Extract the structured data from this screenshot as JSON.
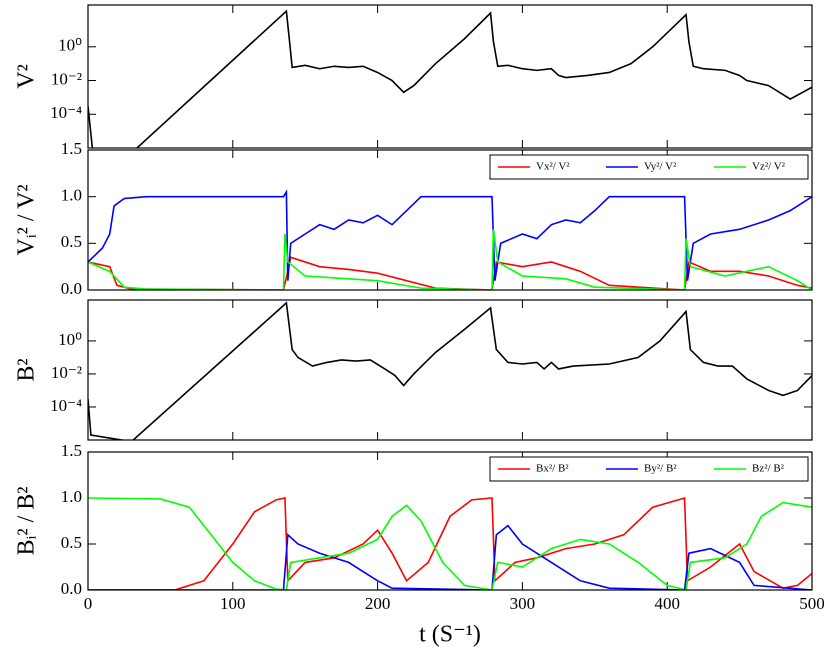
{
  "chart_data": [
    {
      "type": "line",
      "y_label": "V²",
      "yscale": "log",
      "xlim": [
        0,
        500
      ],
      "ylim": [
        1e-06,
        300
      ],
      "yticks": [
        {
          "value": 0.0001,
          "label": "10⁻⁴"
        },
        {
          "value": 0.01,
          "label": "10⁻²"
        },
        {
          "value": 1,
          "label": "10⁰"
        }
      ],
      "color": "#000000",
      "x": [
        0,
        3,
        30,
        137,
        139,
        141,
        150,
        160,
        170,
        180,
        190,
        200,
        210,
        218,
        225,
        240,
        260,
        278,
        280,
        283,
        290,
        300,
        310,
        320,
        325,
        330,
        345,
        360,
        375,
        390,
        413,
        415,
        418,
        425,
        440,
        450,
        455,
        470,
        485,
        500
      ],
      "values": [
        0.0003,
        1e-06,
        5e-07,
        130,
        3,
        0.06,
        0.08,
        0.05,
        0.07,
        0.06,
        0.07,
        0.03,
        0.01,
        0.002,
        0.005,
        0.1,
        3,
        100,
        2,
        0.07,
        0.08,
        0.05,
        0.04,
        0.05,
        0.02,
        0.015,
        0.02,
        0.03,
        0.1,
        1,
        80,
        2,
        0.07,
        0.05,
        0.04,
        0.02,
        0.01,
        0.005,
        0.0008,
        0.004
      ]
    },
    {
      "type": "line",
      "y_label": "Vᵢ² / V²",
      "xlim": [
        0,
        500
      ],
      "ylim": [
        0,
        1.5
      ],
      "yticks": [
        {
          "value": 0,
          "label": "0.0"
        },
        {
          "value": 0.5,
          "label": "0.5"
        },
        {
          "value": 1,
          "label": "1.0"
        },
        1.5
      ],
      "legend": "top right",
      "series": [
        {
          "name": "Vx²/ V²",
          "color": "#ff0000",
          "x": [
            0,
            15,
            20,
            30,
            135,
            138,
            140,
            160,
            180,
            200,
            220,
            240,
            279,
            282,
            300,
            320,
            340,
            360,
            412,
            415,
            430,
            450,
            470,
            490,
            500
          ],
          "values": [
            0.3,
            0.25,
            0.05,
            0.01,
            0,
            0.2,
            0.35,
            0.25,
            0.22,
            0.18,
            0.1,
            0.02,
            0,
            0.3,
            0.25,
            0.3,
            0.2,
            0.05,
            0,
            0.3,
            0.2,
            0.2,
            0.15,
            0.05,
            0.02
          ]
        },
        {
          "name": "Vy²/ V²",
          "color": "#0000ff",
          "x": [
            0,
            10,
            15,
            18,
            25,
            40,
            135,
            137,
            138,
            140,
            150,
            160,
            170,
            180,
            190,
            200,
            210,
            220,
            230,
            279,
            281,
            285,
            300,
            310,
            320,
            330,
            340,
            350,
            360,
            412,
            414,
            418,
            430,
            450,
            470,
            485,
            500
          ],
          "values": [
            0.3,
            0.45,
            0.6,
            0.9,
            0.98,
            1,
            1,
            1.05,
            0.1,
            0.5,
            0.6,
            0.7,
            0.65,
            0.75,
            0.72,
            0.8,
            0.7,
            0.85,
            1,
            1,
            0.1,
            0.5,
            0.6,
            0.55,
            0.7,
            0.75,
            0.72,
            0.85,
            1,
            1,
            0.1,
            0.5,
            0.6,
            0.65,
            0.75,
            0.85,
            1
          ]
        },
        {
          "name": "Vz²/ V²",
          "color": "#00ff00",
          "x": [
            0,
            15,
            25,
            40,
            135,
            136,
            138,
            150,
            180,
            200,
            230,
            279,
            280,
            283,
            300,
            330,
            350,
            412,
            413,
            416,
            440,
            470,
            490,
            500
          ],
          "values": [
            0.3,
            0.2,
            0.03,
            0.01,
            0,
            0.6,
            0.3,
            0.15,
            0.12,
            0.1,
            0.02,
            0,
            0.65,
            0.3,
            0.15,
            0.12,
            0.03,
            0,
            0.55,
            0.25,
            0.15,
            0.25,
            0.1,
            0
          ]
        }
      ]
    },
    {
      "type": "line",
      "y_label": "B²",
      "yscale": "log",
      "xlim": [
        0,
        500
      ],
      "ylim": [
        1e-06,
        300
      ],
      "yticks": [
        {
          "value": 0.0001,
          "label": "10⁻⁴"
        },
        {
          "value": 0.01,
          "label": "10⁻²"
        },
        {
          "value": 1,
          "label": "10⁰"
        }
      ],
      "color": "#000000",
      "x": [
        0,
        2,
        30,
        137,
        141,
        145,
        155,
        165,
        175,
        185,
        195,
        205,
        212,
        218,
        225,
        240,
        260,
        278,
        282,
        290,
        300,
        310,
        315,
        320,
        325,
        335,
        360,
        380,
        395,
        413,
        416,
        425,
        435,
        445,
        455,
        470,
        480,
        490,
        500
      ],
      "values": [
        0.0003,
        2e-06,
        8e-07,
        200,
        0.3,
        0.1,
        0.03,
        0.05,
        0.07,
        0.06,
        0.07,
        0.02,
        0.008,
        0.002,
        0.01,
        0.2,
        5,
        100,
        0.3,
        0.05,
        0.04,
        0.05,
        0.02,
        0.05,
        0.02,
        0.03,
        0.04,
        0.1,
        1,
        60,
        0.3,
        0.05,
        0.03,
        0.03,
        0.005,
        0.001,
        0.0005,
        0.001,
        0.008
      ]
    },
    {
      "type": "line",
      "y_label": "Bᵢ² / B²",
      "x_label": "t (S⁻¹)",
      "xlim": [
        0,
        500
      ],
      "ylim": [
        0,
        1.5
      ],
      "xticks": [
        0,
        100,
        200,
        300,
        400,
        500
      ],
      "yticks": [
        {
          "value": 0,
          "label": "0.0"
        },
        {
          "value": 0.5,
          "label": "0.5"
        },
        {
          "value": 1,
          "label": "1.0"
        },
        1.5
      ],
      "legend": "top right",
      "series": [
        {
          "name": "Bx²/ B²",
          "color": "#ff0000",
          "x": [
            0,
            60,
            80,
            100,
            115,
            130,
            136,
            138,
            150,
            170,
            190,
            200,
            210,
            220,
            235,
            250,
            265,
            279,
            281,
            295,
            310,
            330,
            350,
            370,
            390,
            412,
            414,
            430,
            450,
            460,
            480,
            490,
            500
          ],
          "values": [
            0,
            0,
            0.1,
            0.5,
            0.85,
            0.98,
            1,
            0.1,
            0.3,
            0.35,
            0.5,
            0.65,
            0.4,
            0.1,
            0.3,
            0.8,
            0.98,
            1,
            0.1,
            0.3,
            0.35,
            0.45,
            0.5,
            0.6,
            0.9,
            1,
            0.1,
            0.25,
            0.5,
            0.2,
            0.02,
            0.05,
            0.18
          ]
        },
        {
          "name": "By²/ B²",
          "color": "#0000ff",
          "x": [
            0,
            135,
            138,
            145,
            160,
            180,
            200,
            210,
            279,
            282,
            290,
            300,
            320,
            340,
            360,
            412,
            415,
            430,
            450,
            460,
            500
          ],
          "values": [
            0,
            0,
            0.6,
            0.5,
            0.4,
            0.3,
            0.1,
            0.02,
            0,
            0.6,
            0.7,
            0.5,
            0.3,
            0.1,
            0.02,
            0,
            0.4,
            0.45,
            0.3,
            0.05,
            0
          ]
        },
        {
          "name": "Bz²/ B²",
          "color": "#00ff00",
          "x": [
            0,
            50,
            70,
            85,
            100,
            115,
            130,
            137,
            140,
            160,
            180,
            200,
            210,
            220,
            230,
            245,
            260,
            279,
            283,
            300,
            320,
            340,
            360,
            380,
            400,
            413,
            416,
            440,
            455,
            465,
            480,
            500
          ],
          "values": [
            1,
            0.99,
            0.9,
            0.6,
            0.3,
            0.1,
            0.01,
            0,
            0.3,
            0.35,
            0.4,
            0.55,
            0.8,
            0.92,
            0.75,
            0.3,
            0.05,
            0,
            0.3,
            0.25,
            0.45,
            0.55,
            0.5,
            0.3,
            0.05,
            0,
            0.3,
            0.35,
            0.5,
            0.8,
            0.95,
            0.9
          ]
        }
      ]
    }
  ]
}
